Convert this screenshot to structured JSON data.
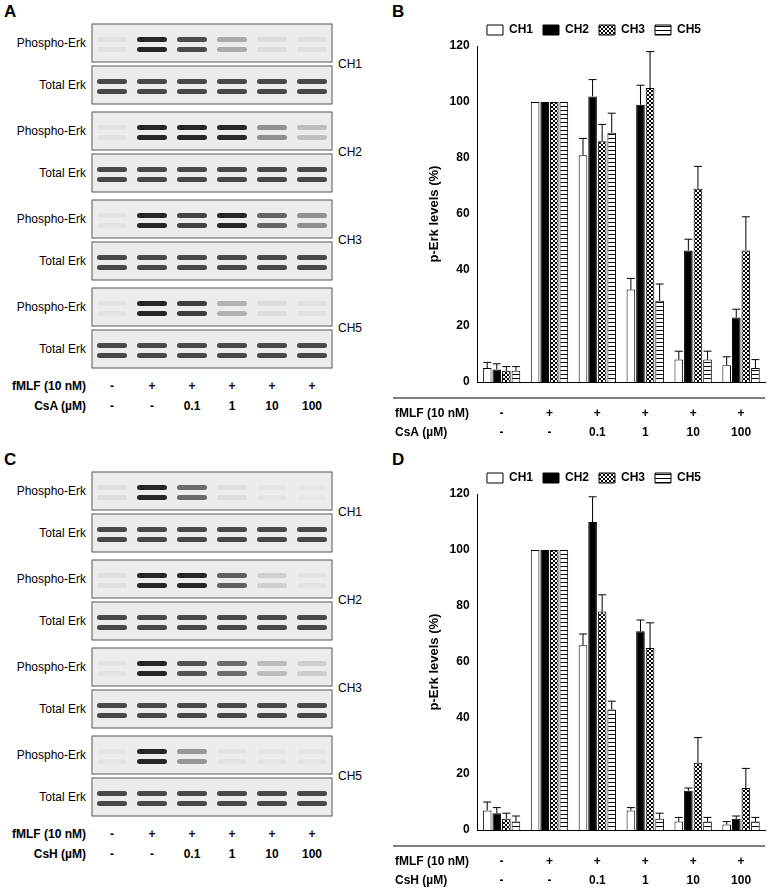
{
  "chart_data": [
    {
      "panel": "B",
      "type": "bar",
      "y_label": "p-Erk levels (%)",
      "category_rows": [
        "fMLF (10 nM)",
        "CsA (µM)"
      ],
      "categories": [
        [
          "-",
          "-"
        ],
        [
          "+",
          "-"
        ],
        [
          "+",
          "0.1"
        ],
        [
          "+",
          "1"
        ],
        [
          "+",
          "10"
        ],
        [
          "+",
          "100"
        ]
      ],
      "series": [
        {
          "name": "CH1",
          "color": "#000000",
          "marker": "open",
          "values": [
            5,
            100,
            81,
            33,
            8,
            6
          ],
          "errors": [
            2,
            0,
            6,
            4,
            3,
            3
          ]
        },
        {
          "name": "CH2",
          "color": "#000000",
          "marker": "filled",
          "values": [
            4.5,
            100,
            102,
            99,
            47,
            23
          ],
          "errors": [
            2,
            0,
            6,
            7,
            4,
            3
          ]
        },
        {
          "name": "CH3",
          "color": "#000000",
          "marker": "crosshatch",
          "values": [
            4,
            100,
            86,
            105,
            69,
            47
          ],
          "errors": [
            1.5,
            0,
            6,
            13,
            8,
            12
          ]
        },
        {
          "name": "CH5",
          "color": "#000000",
          "marker": "horizontal-lines",
          "values": [
            4,
            100,
            89,
            29,
            8,
            5
          ],
          "errors": [
            1.5,
            0,
            7,
            6,
            3,
            3
          ]
        }
      ],
      "ylim": [
        0,
        120
      ],
      "yticks": [
        0,
        20,
        40,
        60,
        80,
        100,
        120
      ],
      "grid": false,
      "legend": "top"
    },
    {
      "panel": "D",
      "type": "bar",
      "y_label": "p-Erk levels (%)",
      "category_rows": [
        "fMLF (10 nM)",
        "CsH (µM)"
      ],
      "categories": [
        [
          "-",
          "-"
        ],
        [
          "+",
          "-"
        ],
        [
          "+",
          "0.1"
        ],
        [
          "+",
          "1"
        ],
        [
          "+",
          "10"
        ],
        [
          "+",
          "100"
        ]
      ],
      "series": [
        {
          "name": "CH1",
          "color": "#000000",
          "marker": "open",
          "values": [
            7,
            100,
            66,
            7,
            3,
            2
          ],
          "errors": [
            3,
            0,
            4,
            1,
            1.5,
            1
          ]
        },
        {
          "name": "CH2",
          "color": "#000000",
          "marker": "filled",
          "values": [
            6,
            100,
            110,
            71,
            14,
            4
          ],
          "errors": [
            2,
            0,
            9,
            4,
            1,
            1
          ]
        },
        {
          "name": "CH3",
          "color": "#000000",
          "marker": "crosshatch",
          "values": [
            4,
            100,
            78,
            65,
            24,
            15
          ],
          "errors": [
            2,
            0,
            6,
            9,
            9,
            7
          ]
        },
        {
          "name": "CH5",
          "color": "#000000",
          "marker": "horizontal-lines",
          "values": [
            3,
            100,
            43,
            4,
            3,
            3
          ],
          "errors": [
            2,
            0,
            3,
            2,
            1.5,
            1.5
          ]
        }
      ],
      "ylim": [
        0,
        120
      ],
      "yticks": [
        0,
        20,
        40,
        60,
        80,
        100,
        120
      ],
      "grid": false,
      "legend": "top"
    }
  ],
  "blots": [
    {
      "panel": "A",
      "rows": [
        "Phospho-Erk",
        "Total Erk"
      ]
    },
    {
      "panel": "C",
      "rows": [
        "Phospho-Erk",
        "Total Erk"
      ]
    }
  ]
}
